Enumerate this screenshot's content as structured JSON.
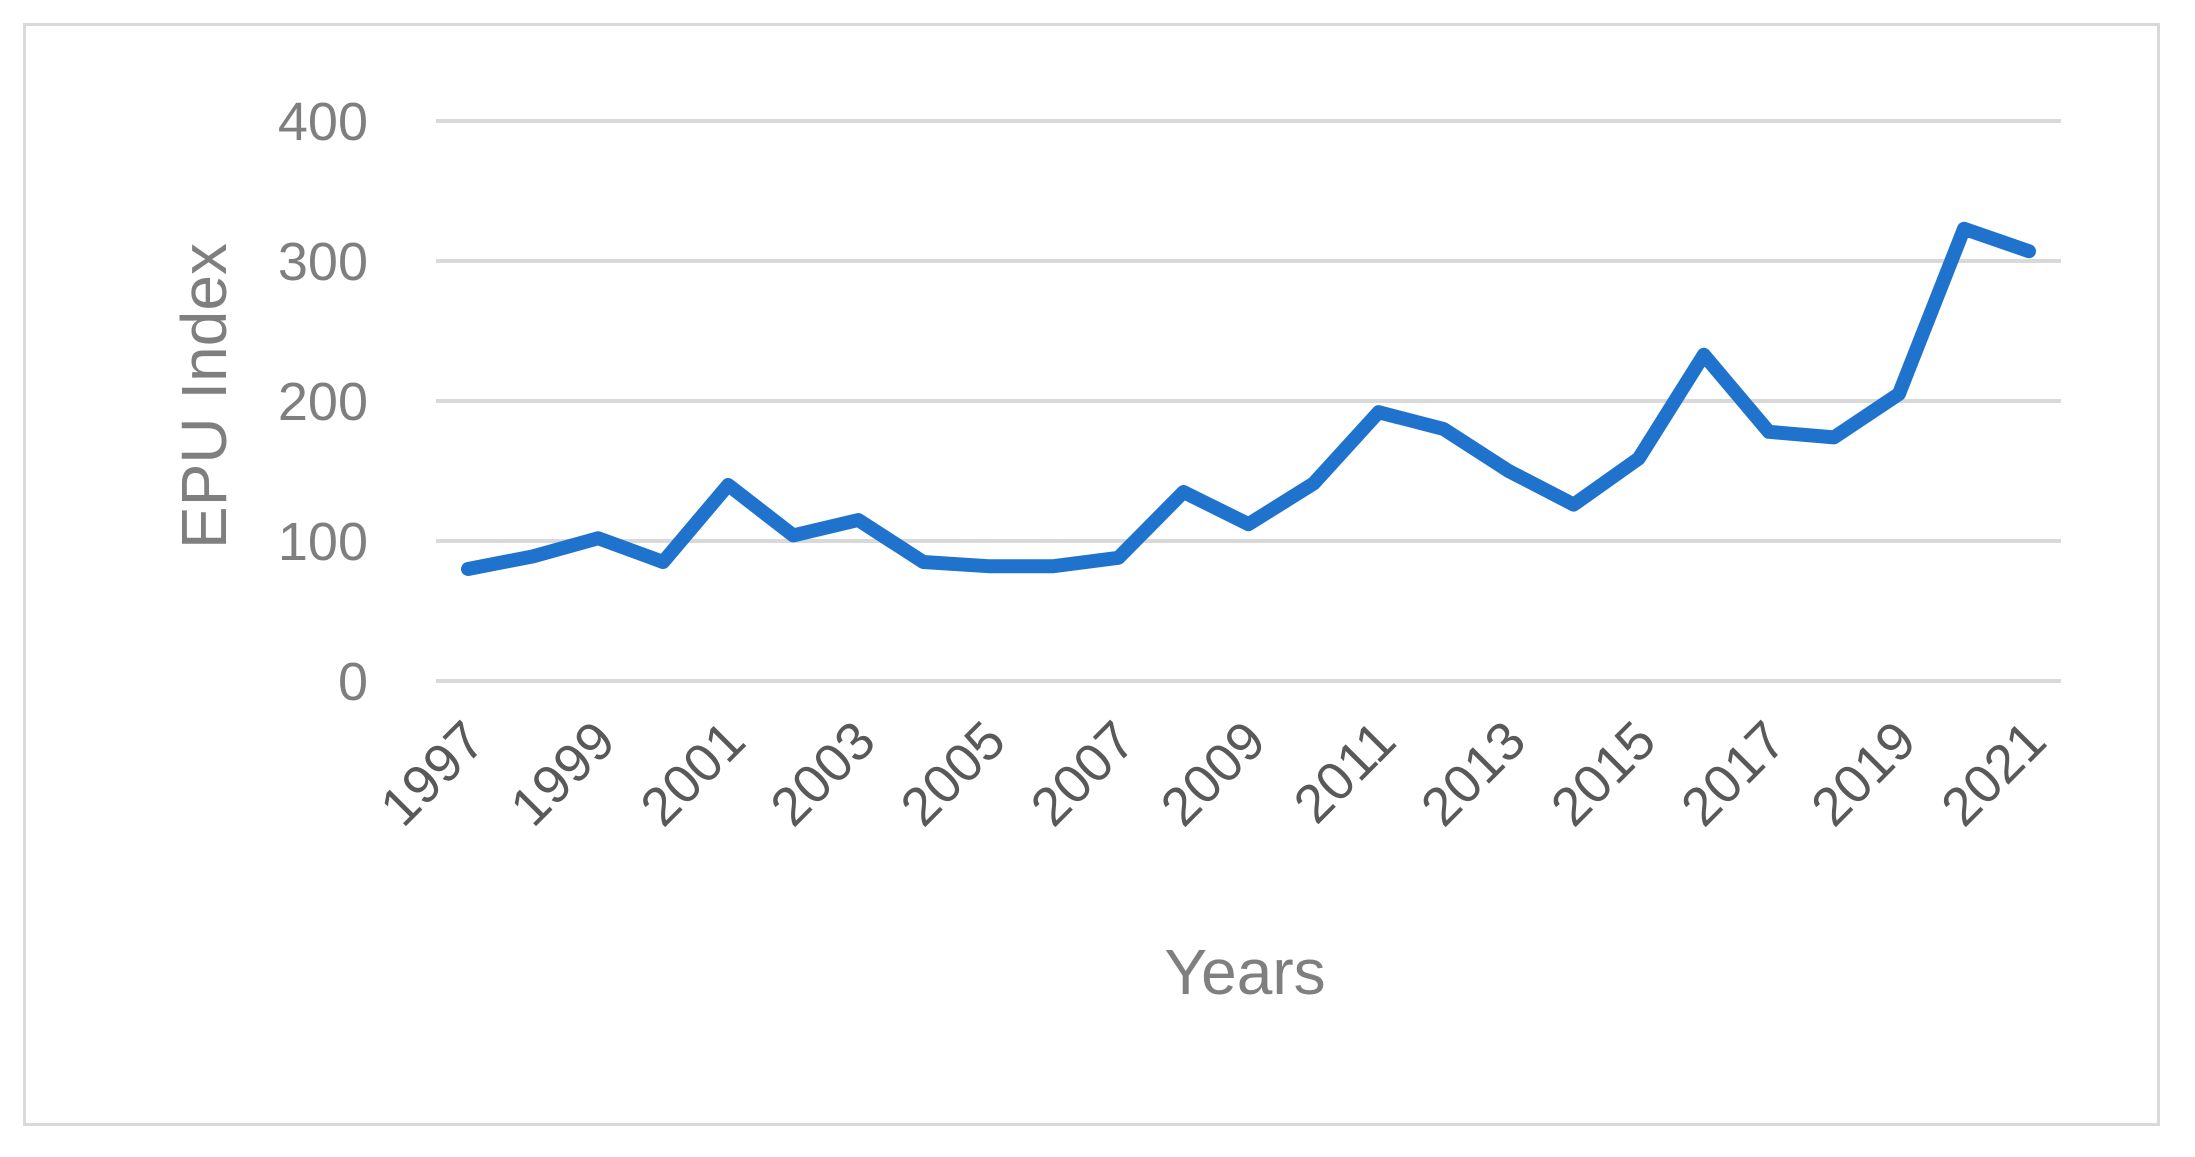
{
  "chart_data": {
    "type": "line",
    "title": "",
    "xlabel": "Years",
    "ylabel": "EPU Index",
    "ylim": [
      0,
      400
    ],
    "y_ticks": [
      0,
      100,
      200,
      300,
      400
    ],
    "x": [
      1997,
      1998,
      1999,
      2000,
      2001,
      2002,
      2003,
      2004,
      2005,
      2006,
      2007,
      2008,
      2009,
      2010,
      2011,
      2012,
      2013,
      2014,
      2015,
      2016,
      2017,
      2018,
      2019,
      2020,
      2021
    ],
    "x_tick_labels": [
      "1997",
      "1999",
      "2001",
      "2003",
      "2005",
      "2007",
      "2009",
      "2011",
      "2013",
      "2015",
      "2017",
      "2019",
      "2021"
    ],
    "series": [
      {
        "values": [
          80,
          89,
          102,
          85,
          140,
          104,
          115,
          85,
          82,
          82,
          88,
          135,
          112,
          141,
          192,
          180,
          150,
          126,
          159,
          233,
          178,
          174,
          205,
          323,
          307
        ]
      }
    ],
    "grid": true,
    "legend": "none"
  },
  "colors": {
    "line": "#1f73cd",
    "grid": "#d9d9d9",
    "frame": "#d9d9d9",
    "tick_text": "#7f7f7f",
    "x_tick_text": "#595959"
  }
}
